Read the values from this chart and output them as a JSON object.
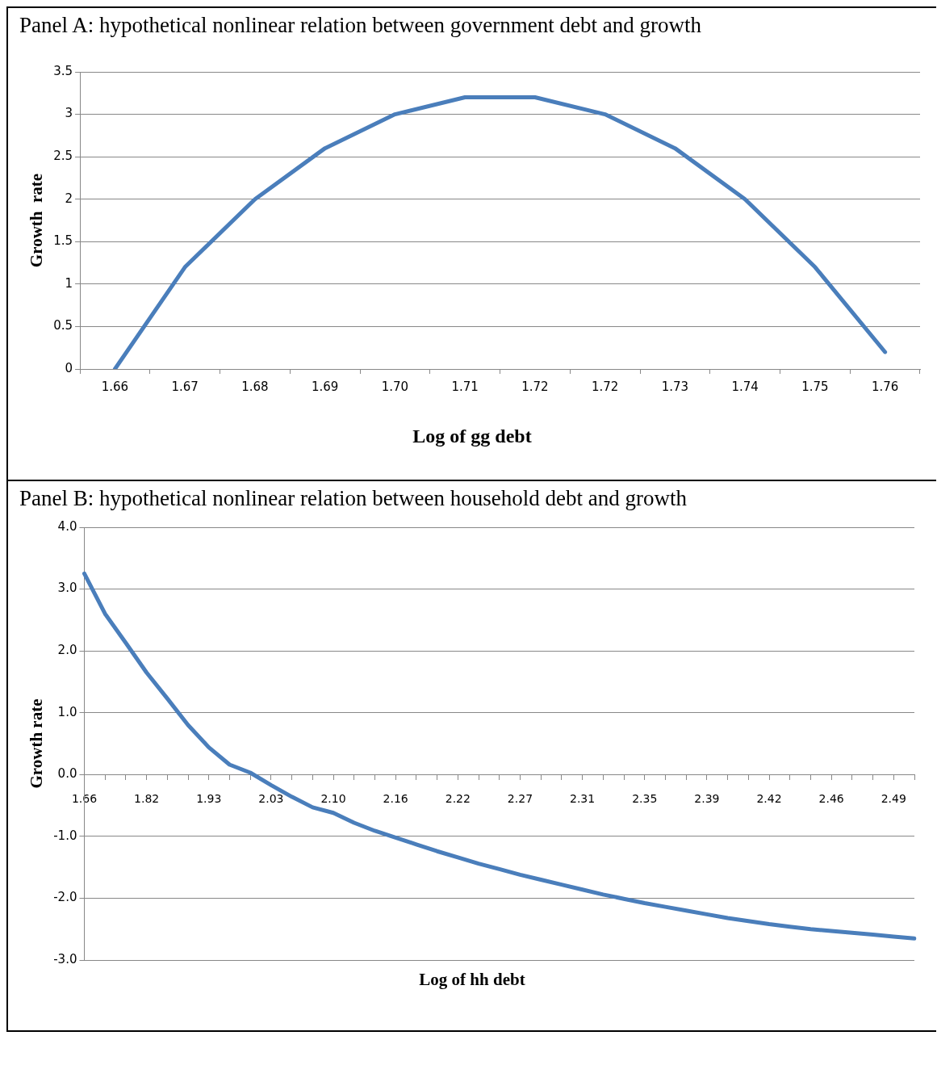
{
  "chart_data": [
    {
      "type": "line",
      "title": "Panel A: hypothetical nonlinear relation between government debt and growth",
      "xlabel": "Log of gg debt",
      "ylabel": "Growth  rate",
      "categories": [
        "1.66",
        "1.67",
        "1.68",
        "1.69",
        "1.70",
        "1.71",
        "1.72",
        "1.72",
        "1.73",
        "1.74",
        "1.75",
        "1.76"
      ],
      "series": [
        {
          "color": "#4a7ebb",
          "values": [
            0,
            1.2,
            2,
            2.6,
            3,
            3.2,
            3.2,
            3,
            2.6,
            2,
            1.2,
            0.2
          ]
        }
      ],
      "ylim": [
        0,
        3.5
      ],
      "yticks": [
        0,
        0.5,
        1,
        1.5,
        2,
        2.5,
        3,
        3.5
      ],
      "grid": "y",
      "legend": false,
      "marker": "none",
      "line_style": "solid"
    },
    {
      "type": "line",
      "title": "Panel B: hypothetical nonlinear relation between household debt and growth",
      "xlabel": "Log of hh debt",
      "ylabel": "Growth rate",
      "categories": [
        "1.66",
        null,
        null,
        "1.82",
        null,
        null,
        "1.93",
        null,
        null,
        "2.03",
        null,
        null,
        "2.10",
        null,
        null,
        "2.16",
        null,
        null,
        "2.22",
        null,
        null,
        "2.27",
        null,
        null,
        "2.31",
        null,
        null,
        "2.35",
        null,
        null,
        "2.39",
        null,
        null,
        "2.42",
        null,
        null,
        "2.46",
        null,
        null,
        "2.49",
        null
      ],
      "series": [
        {
          "color": "#4a7ebb",
          "values": [
            3.25,
            2.6,
            2.13,
            1.65,
            1.23,
            0.8,
            0.44,
            0.16,
            0.03,
            -0.17,
            -0.36,
            -0.53,
            -0.62,
            -0.78,
            -0.91,
            -1.02,
            -1.13,
            -1.24,
            -1.34,
            -1.44,
            -1.53,
            -1.62,
            -1.7,
            -1.78,
            -1.86,
            -1.94,
            -2.01,
            -2.08,
            -2.14,
            -2.2,
            -2.26,
            -2.32,
            -2.37,
            -2.42,
            -2.46,
            -2.5,
            -2.53,
            -2.56,
            -2.59,
            -2.62,
            -2.65
          ]
        }
      ],
      "ylim": [
        -3,
        4
      ],
      "yticks": [
        {
          "value": -3,
          "label": "-3.0"
        },
        {
          "value": -2,
          "label": "-2.0"
        },
        {
          "value": -1,
          "label": "-1.0"
        },
        {
          "value": 0,
          "label": "0.0"
        },
        {
          "value": 1,
          "label": "1.0"
        },
        {
          "value": 2,
          "label": "2.0"
        },
        {
          "value": 3,
          "label": "3.0"
        },
        {
          "value": 4,
          "label": "4.0"
        }
      ],
      "grid": "y",
      "legend": false,
      "marker": "none",
      "line_style": "solid"
    }
  ]
}
